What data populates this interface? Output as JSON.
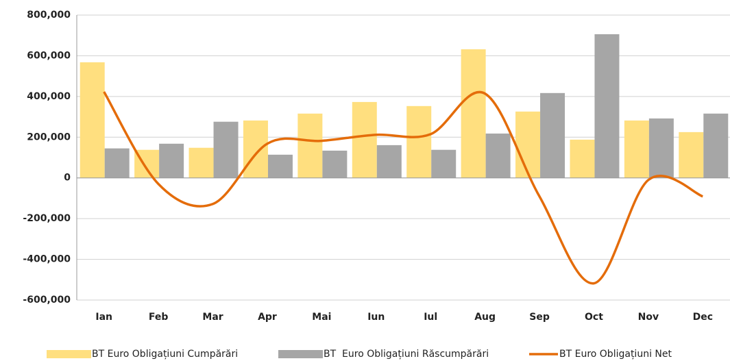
{
  "chart_data": {
    "type": "bar_line",
    "categories": [
      "Ian",
      "Feb",
      "Mar",
      "Apr",
      "Mai",
      "Iun",
      "Iul",
      "Aug",
      "Sep",
      "Oct",
      "Nov",
      "Dec"
    ],
    "series": [
      {
        "name": "BT Euro Obligațiuni Cumpărări",
        "type": "bar",
        "color": "#ffdf7f",
        "values": [
          568000,
          138000,
          148000,
          282000,
          316000,
          373000,
          353000,
          632000,
          326000,
          188000,
          282000,
          225000
        ]
      },
      {
        "name": "BT  Euro Obligațiuni Răscumpărări",
        "type": "bar",
        "color": "#a6a6a6",
        "values": [
          145000,
          168000,
          276000,
          114000,
          134000,
          161000,
          138000,
          218000,
          417000,
          706000,
          292000,
          316000
        ]
      },
      {
        "name": "BT Euro Obligațiuni Net",
        "type": "line",
        "color": "#e46c0a",
        "values": [
          423000,
          -30000,
          -128000,
          168000,
          182000,
          212000,
          215000,
          414000,
          -91000,
          -518000,
          -10000,
          -91000
        ]
      }
    ],
    "ylim": [
      -600000,
      800000
    ],
    "yticks": [
      {
        "value": -600000,
        "label": "-600,000"
      },
      {
        "value": -400000,
        "label": "-400,000"
      },
      {
        "value": -200000,
        "label": "-200,000"
      },
      0,
      {
        "value": 200000,
        "label": "200,000"
      },
      {
        "value": 400000,
        "label": "400,000"
      },
      {
        "value": 600000,
        "label": "600,000"
      },
      {
        "value": 800000,
        "label": "800,000"
      }
    ],
    "grid": true,
    "negative_tick_color": "#e00000",
    "legend": "bottom"
  }
}
